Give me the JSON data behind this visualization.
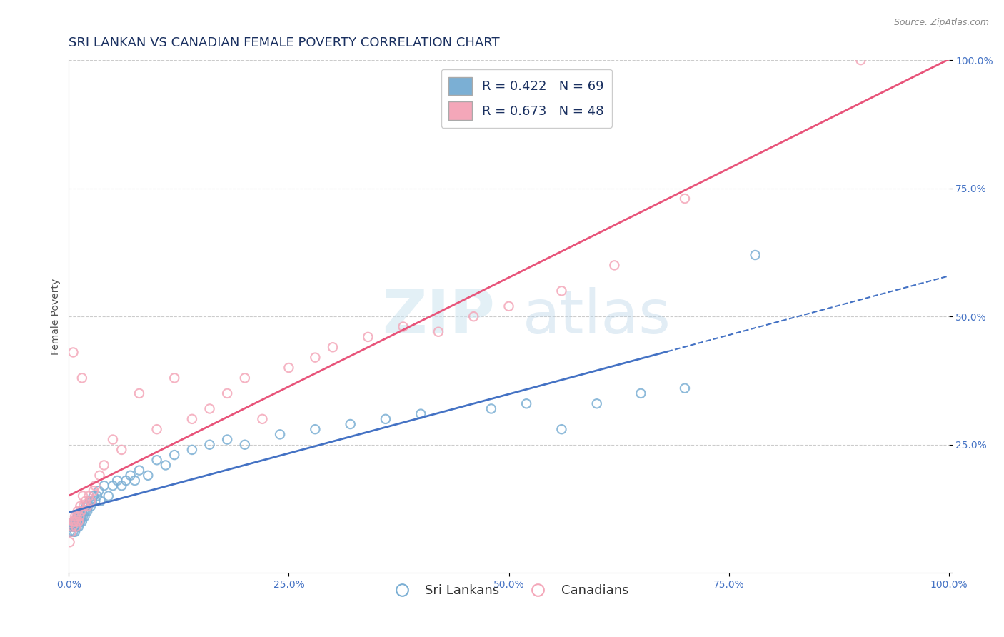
{
  "title": "SRI LANKAN VS CANADIAN FEMALE POVERTY CORRELATION CHART",
  "source": "Source: ZipAtlas.com",
  "xlabel": "",
  "ylabel": "Female Poverty",
  "xlim": [
    0,
    1
  ],
  "ylim": [
    0,
    1
  ],
  "xtick_vals": [
    0,
    0.25,
    0.5,
    0.75,
    1.0
  ],
  "xtick_labels": [
    "0.0%",
    "25.0%",
    "50.0%",
    "75.0%",
    "100.0%"
  ],
  "ytick_vals": [
    0,
    0.25,
    0.5,
    0.75,
    1.0
  ],
  "ytick_labels": [
    "",
    "25.0%",
    "50.0%",
    "75.0%",
    "100.0%"
  ],
  "sri_lankan_R": 0.422,
  "sri_lankan_N": 69,
  "canadian_R": 0.673,
  "canadian_N": 48,
  "sri_lankan_color": "#7bafd4",
  "canadian_color": "#f4a7b9",
  "sri_lankan_line_color": "#4472c4",
  "canadian_line_color": "#e8547a",
  "background_color": "#ffffff",
  "grid_color": "#cccccc",
  "title_color": "#1a3060",
  "sri_lankans_label": "Sri Lankans",
  "canadians_label": "Canadians",
  "sl_x": [
    0.001,
    0.002,
    0.003,
    0.004,
    0.005,
    0.005,
    0.006,
    0.006,
    0.007,
    0.007,
    0.008,
    0.008,
    0.009,
    0.009,
    0.01,
    0.01,
    0.011,
    0.011,
    0.012,
    0.012,
    0.013,
    0.013,
    0.014,
    0.015,
    0.015,
    0.016,
    0.017,
    0.018,
    0.019,
    0.02,
    0.021,
    0.022,
    0.024,
    0.025,
    0.026,
    0.028,
    0.03,
    0.032,
    0.034,
    0.036,
    0.04,
    0.045,
    0.05,
    0.055,
    0.06,
    0.065,
    0.07,
    0.075,
    0.08,
    0.09,
    0.1,
    0.11,
    0.12,
    0.14,
    0.16,
    0.18,
    0.2,
    0.24,
    0.28,
    0.32,
    0.36,
    0.4,
    0.48,
    0.52,
    0.56,
    0.6,
    0.65,
    0.7,
    0.78
  ],
  "sl_y": [
    0.08,
    0.09,
    0.08,
    0.09,
    0.1,
    0.08,
    0.09,
    0.1,
    0.08,
    0.09,
    0.1,
    0.09,
    0.1,
    0.09,
    0.1,
    0.11,
    0.09,
    0.1,
    0.11,
    0.1,
    0.11,
    0.1,
    0.11,
    0.1,
    0.12,
    0.11,
    0.12,
    0.11,
    0.12,
    0.13,
    0.12,
    0.13,
    0.14,
    0.13,
    0.14,
    0.15,
    0.14,
    0.15,
    0.16,
    0.14,
    0.17,
    0.15,
    0.17,
    0.18,
    0.17,
    0.18,
    0.19,
    0.18,
    0.2,
    0.19,
    0.22,
    0.21,
    0.23,
    0.24,
    0.25,
    0.26,
    0.25,
    0.27,
    0.28,
    0.29,
    0.3,
    0.31,
    0.32,
    0.33,
    0.28,
    0.33,
    0.35,
    0.36,
    0.62
  ],
  "ca_x": [
    0.001,
    0.003,
    0.004,
    0.005,
    0.005,
    0.006,
    0.007,
    0.008,
    0.008,
    0.009,
    0.01,
    0.011,
    0.012,
    0.013,
    0.014,
    0.015,
    0.016,
    0.017,
    0.019,
    0.021,
    0.023,
    0.025,
    0.028,
    0.03,
    0.035,
    0.04,
    0.05,
    0.06,
    0.08,
    0.1,
    0.12,
    0.14,
    0.16,
    0.18,
    0.2,
    0.22,
    0.25,
    0.28,
    0.3,
    0.34,
    0.38,
    0.42,
    0.46,
    0.5,
    0.56,
    0.62,
    0.7,
    0.9
  ],
  "ca_y": [
    0.06,
    0.08,
    0.09,
    0.43,
    0.1,
    0.1,
    0.11,
    0.1,
    0.09,
    0.11,
    0.12,
    0.1,
    0.11,
    0.13,
    0.12,
    0.38,
    0.15,
    0.13,
    0.14,
    0.13,
    0.15,
    0.14,
    0.16,
    0.17,
    0.19,
    0.21,
    0.26,
    0.24,
    0.35,
    0.28,
    0.38,
    0.3,
    0.32,
    0.35,
    0.38,
    0.3,
    0.4,
    0.42,
    0.44,
    0.46,
    0.48,
    0.47,
    0.5,
    0.52,
    0.55,
    0.6,
    0.73,
    1.0
  ],
  "sl_line_solid_end": 0.8,
  "sl_line_dashed_start": 0.6,
  "sl_line_end": 1.0
}
